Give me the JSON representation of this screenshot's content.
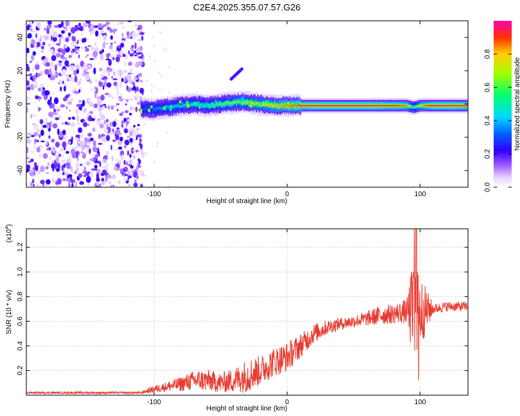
{
  "title": "C2E4.2025.355.07.57.G26",
  "chart_data": [
    {
      "type": "heatmap",
      "title": "C2E4.2025.355.07.57.G26",
      "xlabel": "Height of straight line (km)",
      "ylabel": "Frequency (Hz)",
      "xlim": [
        -196,
        136
      ],
      "ylim": [
        -50,
        50
      ],
      "xticks": [
        -100,
        0,
        100
      ],
      "xtick_labels": [
        "-100",
        "0",
        "100"
      ],
      "yticks": [
        -40,
        -20,
        0,
        20,
        40
      ],
      "ytick_labels": [
        "-40",
        "-20",
        "0",
        "20",
        "40"
      ],
      "colorbar": {
        "label": "Normalized spectral amplitude",
        "range": [
          0.0,
          1.0
        ],
        "ticks": [
          0.0,
          0.2,
          0.4,
          0.6,
          0.8
        ],
        "tick_labels": [
          "0.0",
          "0.2",
          "0.4",
          "0.6",
          "0.8"
        ],
        "colors": [
          "#ffffff",
          "#c8a0ff",
          "#7000ff",
          "#0000ff",
          "#00c8ff",
          "#00ff80",
          "#80ff00",
          "#ffff00",
          "#ff8000",
          "#ff0000",
          "#ff00c0"
        ]
      },
      "noise_region_x": [
        -196,
        -108
      ],
      "ridge": {
        "x": [
          -110,
          -100,
          -90,
          -80,
          -70,
          -60,
          -50,
          -40,
          -30,
          -20,
          -10,
          0,
          10,
          20,
          40,
          60,
          80,
          90,
          95,
          100,
          110,
          120,
          136
        ],
        "freq": [
          -3,
          -3,
          -2,
          -1,
          0,
          -1,
          0,
          1,
          1,
          0,
          -1,
          -1,
          -1,
          -1,
          -1,
          -1,
          -1,
          -1,
          -2,
          -1,
          -1,
          -1,
          -1
        ],
        "amplitude": [
          0.3,
          0.35,
          0.4,
          0.45,
          0.5,
          0.55,
          0.6,
          0.65,
          0.7,
          0.75,
          0.8,
          0.85,
          0.9,
          0.95,
          0.95,
          0.95,
          0.9,
          0.85,
          0.5,
          0.8,
          0.95,
          0.95,
          0.9
        ]
      },
      "feature": {
        "x_start": -42,
        "x_end": -34,
        "freq_start": 15,
        "freq_end": 21,
        "amplitude": 0.2
      }
    },
    {
      "type": "line",
      "xlabel": "Height of straight line (km)",
      "ylabel": "SNR (10 * v/v)",
      "y_multiplier_label": "(x10",
      "y_multiplier_exponent": "4",
      "y_multiplier_close": ")",
      "xlim": [
        -196,
        136
      ],
      "ylim": [
        0,
        1.35
      ],
      "xticks": [
        -100,
        0,
        100
      ],
      "xtick_labels": [
        "-100",
        "0",
        "100"
      ],
      "yticks": [
        0.2,
        0.4,
        0.6,
        0.8,
        1.0,
        1.2
      ],
      "ytick_labels": [
        "0.2",
        "0.4",
        "0.6",
        "0.8",
        "1.0",
        "1.2"
      ],
      "series": [
        {
          "name": "SNR",
          "color": "#e83a30",
          "x": [
            -196,
            -150,
            -110,
            -100,
            -90,
            -80,
            -70,
            -60,
            -50,
            -40,
            -30,
            -20,
            -10,
            0,
            10,
            20,
            30,
            40,
            50,
            60,
            70,
            80,
            90,
            95,
            100,
            110,
            120,
            136
          ],
          "y": [
            0.02,
            0.02,
            0.02,
            0.05,
            0.07,
            0.09,
            0.12,
            0.12,
            0.1,
            0.12,
            0.16,
            0.2,
            0.27,
            0.31,
            0.4,
            0.5,
            0.55,
            0.58,
            0.6,
            0.62,
            0.65,
            0.66,
            0.68,
            0.68,
            0.68,
            0.7,
            0.72,
            0.72
          ],
          "noise": [
            0.008,
            0.008,
            0.008,
            0.03,
            0.04,
            0.06,
            0.08,
            0.09,
            0.08,
            0.1,
            0.14,
            0.12,
            0.12,
            0.12,
            0.1,
            0.08,
            0.06,
            0.05,
            0.05,
            0.06,
            0.08,
            0.08,
            0.1,
            0.45,
            0.3,
            0.04,
            0.04,
            0.04
          ]
        }
      ]
    }
  ]
}
